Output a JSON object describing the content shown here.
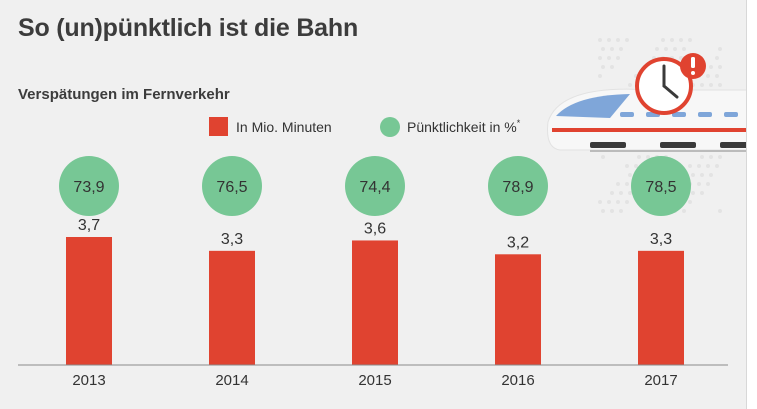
{
  "title": "So (un)pünktlich ist die Bahn",
  "subtitle": "Verspätungen im Fernverkehr",
  "colors": {
    "bar": "#e04330",
    "circle": "#77c795",
    "text": "#333333",
    "background": "#f0f0f0"
  },
  "chart_data": {
    "type": "bar",
    "title": "So (un)pünktlich ist die Bahn",
    "subtitle": "Verspätungen im Fernverkehr",
    "categories": [
      "2013",
      "2014",
      "2015",
      "2016",
      "2017"
    ],
    "series": [
      {
        "name": "In Mio. Minuten",
        "mark": "bar",
        "values": [
          3.7,
          3.3,
          3.6,
          3.2,
          3.3
        ],
        "labels": [
          "3,7",
          "3,3",
          "3,6",
          "3,2",
          "3,3"
        ]
      },
      {
        "name": "Pünktlichkeit in %",
        "name_suffix": "*",
        "mark": "circle",
        "values": [
          73.9,
          76.5,
          74.4,
          78.9,
          78.5
        ],
        "labels": [
          "73,9",
          "76,5",
          "74,4",
          "78,9",
          "78,5"
        ]
      }
    ],
    "legend_position": "top-right",
    "grid": false
  },
  "illustration": {
    "icons": [
      "train-icon",
      "clock-icon",
      "alert-icon",
      "dot-map-pattern"
    ]
  }
}
